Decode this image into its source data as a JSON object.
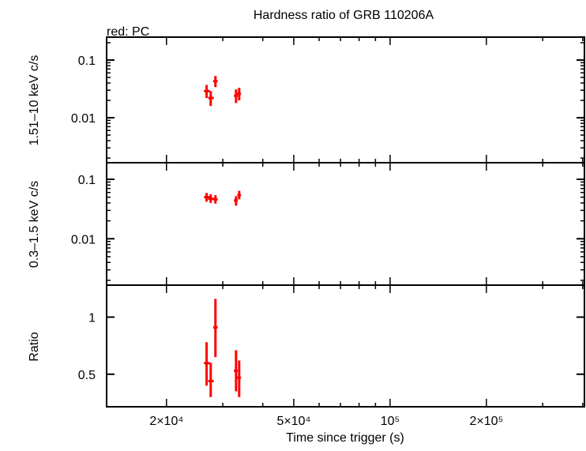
{
  "chart_data": {
    "type": "scatter",
    "title": "Hardness ratio of GRB 110206A",
    "subtitle": "red: PC",
    "xlabel": "Time since trigger (s)",
    "x_scale": "log",
    "xlim": [
      13000,
      405000
    ],
    "x_ticks": [
      {
        "v": 20000,
        "label": "2×10⁴"
      },
      {
        "v": 50000,
        "label": "5×10⁴"
      },
      {
        "v": 100000,
        "label": "10⁵"
      },
      {
        "v": 200000,
        "label": "2×10⁵"
      }
    ],
    "series_color": "#ff0000",
    "x": [
      26700,
      27500,
      28450,
      33000,
      33750
    ],
    "xerr": [
      [
        26200,
        27300
      ],
      [
        27000,
        28100
      ],
      [
        28000,
        28900
      ],
      [
        32500,
        33400
      ],
      [
        33300,
        34200
      ]
    ],
    "panels": [
      {
        "ylabel": "1.51–10 keV c/s",
        "y_scale": "log",
        "ylim": [
          0.00166,
          0.25
        ],
        "y_ticks": [
          {
            "v": 0.1,
            "label": "0.1"
          },
          {
            "v": 0.01,
            "label": "0.01"
          }
        ],
        "y": [
          0.029,
          0.022,
          0.043,
          0.024,
          0.026
        ],
        "yerr": [
          [
            0.022,
            0.037
          ],
          [
            0.016,
            0.029
          ],
          [
            0.034,
            0.053
          ],
          [
            0.018,
            0.031
          ],
          [
            0.02,
            0.033
          ]
        ]
      },
      {
        "ylabel": "0.3–1.5 keV c/s",
        "y_scale": "log",
        "ylim": [
          0.00166,
          0.19
        ],
        "y_ticks": [
          {
            "v": 0.1,
            "label": "0.1"
          },
          {
            "v": 0.01,
            "label": "0.01"
          }
        ],
        "y": [
          0.05,
          0.047,
          0.046,
          0.044,
          0.054
        ],
        "yerr": [
          [
            0.042,
            0.059
          ],
          [
            0.04,
            0.056
          ],
          [
            0.039,
            0.054
          ],
          [
            0.036,
            0.052
          ],
          [
            0.046,
            0.064
          ]
        ]
      },
      {
        "ylabel": "Ratio",
        "y_scale": "linear",
        "ylim": [
          0.215,
          1.28
        ],
        "y_ticks": [
          {
            "v": 1,
            "label": "1"
          },
          {
            "v": 0.5,
            "label": "0.5"
          }
        ],
        "y": [
          0.597,
          0.44,
          0.91,
          0.53,
          0.47
        ],
        "yerr": [
          [
            0.4,
            0.78
          ],
          [
            0.3,
            0.6
          ],
          [
            0.65,
            1.16
          ],
          [
            0.35,
            0.71
          ],
          [
            0.3,
            0.62
          ]
        ]
      }
    ]
  }
}
